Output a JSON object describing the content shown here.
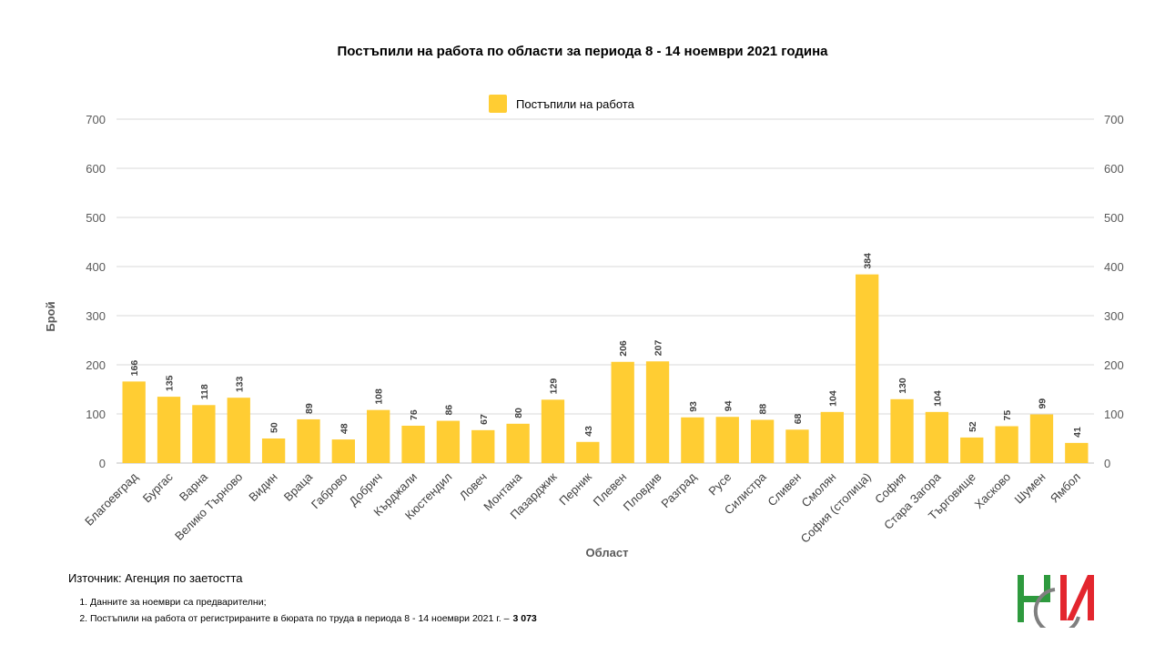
{
  "chart_data": {
    "type": "bar",
    "title": "Постъпили на работа по области за периода 8 - 14 ноември 2021 година",
    "xlabel": "Област",
    "ylabel": "Брой",
    "ylim": [
      0,
      700
    ],
    "yticks": [
      0,
      100,
      200,
      300,
      400,
      500,
      600,
      700
    ],
    "secondary_axis": true,
    "grid": true,
    "legend_position": "top-center",
    "categories": [
      "Благоевград",
      "Бургас",
      "Варна",
      "Велико Търново",
      "Видин",
      "Враца",
      "Габрово",
      "Добрич",
      "Кърджали",
      "Кюстендил",
      "Ловеч",
      "Монтана",
      "Пазарджик",
      "Перник",
      "Плевен",
      "Пловдив",
      "Разград",
      "Русе",
      "Силистра",
      "Сливен",
      "Смолян",
      "София (столица)",
      "София",
      "Стара Загора",
      "Търговище",
      "Хасково",
      "Шумен",
      "Ямбол"
    ],
    "series": [
      {
        "name": "Постъпили на работа",
        "color": "#FFCD33",
        "values": [
          166,
          135,
          118,
          133,
          50,
          89,
          48,
          108,
          76,
          86,
          67,
          80,
          129,
          43,
          206,
          207,
          93,
          94,
          88,
          68,
          104,
          384,
          130,
          104,
          52,
          75,
          99,
          41
        ]
      }
    ]
  },
  "footer": {
    "source": "Източник: Агенция по заетостта",
    "note1": "Данните за ноември  са предварителни;",
    "note2": "Постъпили на работа от регистрираните в бюрата по труда в периода 8 - 14 ноември 2021 г. –",
    "total": "3 073"
  },
  "logo": {
    "icon": "nsi-logo",
    "colors": {
      "green": "#2E9A3E",
      "red": "#E3262E",
      "gray": "#7F7F7F"
    }
  }
}
